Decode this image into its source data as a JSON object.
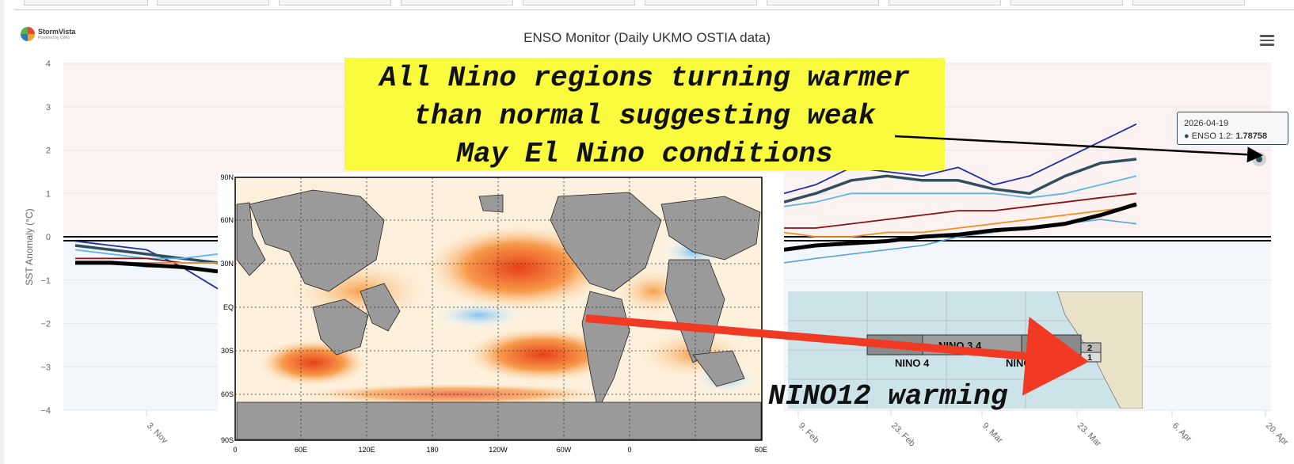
{
  "chart_data": {
    "type": "line",
    "title": "ENSO Monitor (Daily UKMO OSTIA data)",
    "ylabel": "SST Anomaly (°C)",
    "ylim": [
      -4,
      4
    ],
    "y_ticks": [
      "4",
      "3",
      "2",
      "1",
      "0",
      "−1",
      "−2",
      "−3",
      "−4"
    ],
    "x_ticks": [
      "3. Nov",
      "9. Feb",
      "23. Feb",
      "9. Mar",
      "23. Mar",
      "6. Apr",
      "20. Apr"
    ],
    "series": [
      {
        "color": "#1d2fa8",
        "values": [
          -0.1,
          -0.2,
          -0.3,
          -0.7,
          -1.2,
          1.0,
          1.2,
          1.6,
          1.5,
          1.4,
          1.6,
          1.2,
          1.4,
          1.8,
          2.2,
          2.6
        ]
      },
      {
        "color": "#2f4f5f",
        "values": [
          -0.2,
          -0.3,
          -0.4,
          -0.5,
          -0.6,
          0.8,
          1.0,
          1.3,
          1.4,
          1.3,
          1.3,
          1.1,
          1.0,
          1.4,
          1.7,
          1.79
        ]
      },
      {
        "color": "#5fb5e8",
        "values": [
          -0.3,
          -0.4,
          -0.5,
          -0.5,
          -0.4,
          0.7,
          0.8,
          1.0,
          1.0,
          1.0,
          1.0,
          1.0,
          0.9,
          1.0,
          1.2,
          1.4
        ]
      },
      {
        "color": "#8b1010",
        "values": [
          -0.5,
          -0.5,
          -0.5,
          -0.6,
          -0.6,
          0.2,
          0.2,
          0.3,
          0.4,
          0.5,
          0.6,
          0.6,
          0.7,
          0.8,
          0.9,
          1.0
        ]
      },
      {
        "color": "#f28e1c",
        "values": [
          -0.6,
          -0.6,
          -0.6,
          -0.6,
          -0.6,
          0.1,
          0.0,
          0.0,
          0.1,
          0.1,
          0.2,
          0.3,
          0.4,
          0.5,
          0.6,
          0.7
        ]
      },
      {
        "color": "#4aa0d8",
        "values": [
          -0.6,
          -0.6,
          -0.7,
          -0.7,
          -0.8,
          -0.6,
          -0.5,
          -0.4,
          -0.3,
          -0.2,
          0.0,
          0.1,
          0.2,
          0.3,
          0.4,
          0.3
        ]
      },
      {
        "color": "#000000",
        "values": [
          -0.6,
          -0.6,
          -0.65,
          -0.7,
          -0.8,
          -0.3,
          -0.2,
          -0.15,
          -0.1,
          0.0,
          0.05,
          0.15,
          0.2,
          0.3,
          0.5,
          0.75
        ]
      }
    ]
  },
  "annotation": {
    "headline_lines": [
      "All Nino regions turning warmer",
      "than normal suggesting weak",
      "May El Nino conditions"
    ],
    "bottom_label": "NINO12 warming"
  },
  "tooltip": {
    "date": "2026-04-19",
    "series_label": "ENSO 1.2:",
    "value": "1.78758"
  },
  "map": {
    "lat_labels": [
      "90N",
      "60N",
      "30N",
      "EQ",
      "30S",
      "60S",
      "90S"
    ],
    "lon_labels": [
      "0",
      "60E",
      "120E",
      "180",
      "120W",
      "60W",
      "0",
      "60E"
    ]
  },
  "nino_inset": {
    "labels": [
      "NINO 3.4",
      "NINO 4",
      "NINO 3",
      "2",
      "1"
    ]
  },
  "logo": {
    "text": "StormVista",
    "sub": "Powered by CWG"
  }
}
